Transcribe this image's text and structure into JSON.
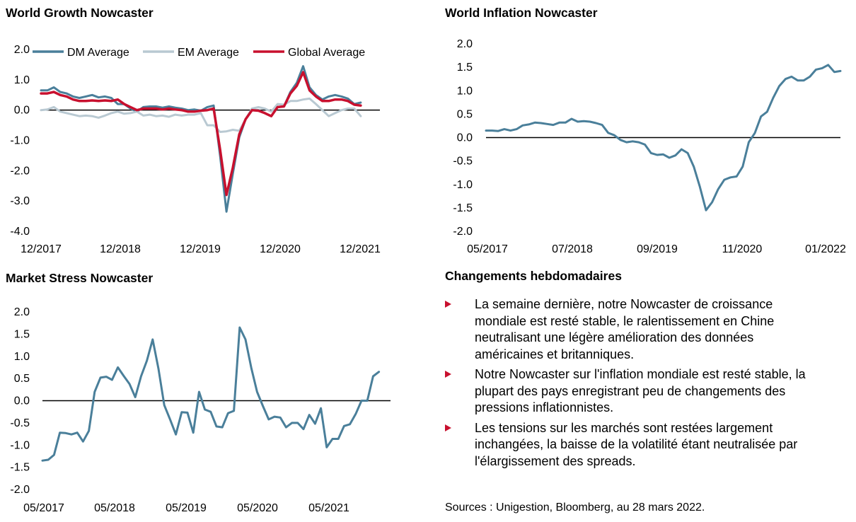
{
  "growth": {
    "title": "World Growth Nowcaster",
    "chart_data": {
      "type": "line",
      "ylim": [
        -4.0,
        2.0
      ],
      "yticks": [
        "2.0",
        "1.0",
        "0.0",
        "-1.0",
        "-2.0",
        "-3.0",
        "-4.0"
      ],
      "xticks": [
        "12/2017",
        "12/2018",
        "12/2019",
        "12/2020",
        "12/2021"
      ],
      "xlim": [
        0,
        53
      ],
      "legend_position": "top",
      "series": [
        {
          "name": "DM Average",
          "color": "#4a7f9a",
          "width": 3,
          "values": [
            0.65,
            0.65,
            0.75,
            0.6,
            0.55,
            0.45,
            0.4,
            0.45,
            0.5,
            0.42,
            0.45,
            0.4,
            0.2,
            0.2,
            0.05,
            -0.05,
            0.1,
            0.12,
            0.12,
            0.08,
            0.12,
            0.08,
            0.05,
            0.0,
            0.02,
            -0.02,
            0.1,
            0.15,
            -1.5,
            -3.35,
            -2.1,
            -0.9,
            -0.3,
            0.0,
            0.0,
            -0.1,
            -0.2,
            0.1,
            0.12,
            0.6,
            0.9,
            1.45,
            0.75,
            0.5,
            0.35,
            0.45,
            0.5,
            0.45,
            0.38,
            0.2,
            0.25
          ]
        },
        {
          "name": "EM Average",
          "color": "#b9c9d2",
          "width": 3,
          "values": [
            0.0,
            0.02,
            0.1,
            -0.05,
            -0.1,
            -0.15,
            -0.2,
            -0.18,
            -0.2,
            -0.25,
            -0.18,
            -0.1,
            -0.05,
            -0.12,
            -0.1,
            -0.05,
            -0.18,
            -0.15,
            -0.2,
            -0.18,
            -0.22,
            -0.15,
            -0.18,
            -0.15,
            -0.15,
            -0.1,
            -0.5,
            -0.5,
            -0.72,
            -0.7,
            -0.65,
            -0.68,
            -0.3,
            0.05,
            0.1,
            0.05,
            -0.05,
            0.2,
            0.18,
            0.3,
            0.3,
            0.35,
            0.38,
            0.2,
            0.0,
            -0.2,
            -0.1,
            0.0,
            0.05,
            0.05,
            -0.2
          ]
        },
        {
          "name": "Global Average",
          "color": "#c8102e",
          "width": 3.5,
          "values": [
            0.55,
            0.55,
            0.6,
            0.5,
            0.45,
            0.35,
            0.3,
            0.3,
            0.32,
            0.3,
            0.32,
            0.3,
            0.35,
            0.2,
            0.1,
            0.0,
            0.05,
            0.05,
            0.05,
            0.02,
            0.05,
            0.02,
            0.0,
            -0.05,
            -0.05,
            -0.02,
            0.0,
            0.05,
            -1.3,
            -2.8,
            -1.9,
            -0.8,
            -0.3,
            0.0,
            -0.02,
            -0.1,
            -0.2,
            0.1,
            0.12,
            0.55,
            0.8,
            1.25,
            0.65,
            0.45,
            0.3,
            0.3,
            0.35,
            0.35,
            0.3,
            0.18,
            0.15
          ]
        }
      ]
    }
  },
  "inflation": {
    "title": "World Inflation Nowcaster",
    "chart_data": {
      "type": "line",
      "ylim": [
        -2.0,
        2.0
      ],
      "yticks": [
        "2.0",
        "1.5",
        "1.0",
        "0.5",
        "0.0",
        "-0.5",
        "-1.0",
        "-1.5",
        "-2.0"
      ],
      "xticks": [
        "05/2017",
        "07/2018",
        "09/2019",
        "11/2020",
        "01/2022"
      ],
      "xlim": [
        0,
        58
      ],
      "series": [
        {
          "name": "",
          "color": "#4a7f9a",
          "width": 3,
          "values": [
            0.15,
            0.15,
            0.14,
            0.18,
            0.15,
            0.18,
            0.26,
            0.28,
            0.32,
            0.31,
            0.29,
            0.27,
            0.32,
            0.32,
            0.4,
            0.34,
            0.35,
            0.34,
            0.31,
            0.27,
            0.1,
            0.05,
            -0.05,
            -0.1,
            -0.08,
            -0.1,
            -0.15,
            -0.33,
            -0.37,
            -0.36,
            -0.43,
            -0.38,
            -0.25,
            -0.33,
            -0.62,
            -1.05,
            -1.55,
            -1.38,
            -1.1,
            -0.9,
            -0.85,
            -0.83,
            -0.62,
            -0.1,
            0.1,
            0.45,
            0.55,
            0.85,
            1.1,
            1.25,
            1.3,
            1.22,
            1.22,
            1.3,
            1.45,
            1.48,
            1.55,
            1.4,
            1.42
          ]
        }
      ]
    }
  },
  "stress": {
    "title": "Market Stress Nowcaster",
    "chart_data": {
      "type": "line",
      "ylim": [
        -2.0,
        2.0
      ],
      "yticks": [
        "2.0",
        "1.5",
        "1.0",
        "0.5",
        "0.0",
        "-0.5",
        "-1.0",
        "-1.5",
        "-2.0"
      ],
      "xticks": [
        "05/2017",
        "05/2018",
        "05/2019",
        "05/2020",
        "05/2021"
      ],
      "xlim": [
        0,
        60
      ],
      "series": [
        {
          "name": "",
          "color": "#4a7f9a",
          "width": 3,
          "values": [
            -1.35,
            -1.33,
            -1.22,
            -0.72,
            -0.73,
            -0.76,
            -0.72,
            -0.92,
            -0.68,
            0.2,
            0.52,
            0.54,
            0.47,
            0.75,
            0.56,
            0.38,
            0.08,
            0.55,
            0.9,
            1.38,
            0.72,
            -0.1,
            -0.42,
            -0.76,
            -0.26,
            -0.27,
            -0.72,
            0.2,
            -0.2,
            -0.25,
            -0.58,
            -0.6,
            -0.28,
            -0.23,
            1.65,
            1.38,
            0.74,
            0.2,
            -0.12,
            -0.42,
            -0.36,
            -0.38,
            -0.6,
            -0.5,
            -0.5,
            -0.64,
            -0.32,
            -0.52,
            -0.17,
            -1.05,
            -0.86,
            -0.86,
            -0.57,
            -0.53,
            -0.3,
            0.0,
            0.0,
            0.55,
            0.65
          ]
        }
      ]
    }
  },
  "changes": {
    "title": "Changements hebdomadaires",
    "bullets": [
      {
        "line1": "La semaine dernière, notre Nowcaster de croissance",
        "line2": "mondiale est resté stable, le ralentissement en Chine",
        "line3": "neutralisant une légère amélioration des données",
        "line4": "américaines et britanniques."
      },
      {
        "line1": "Notre Nowcaster sur l'inflation mondiale est resté stable, la",
        "line2": "plupart des pays enregistrant peu de changements des",
        "line3": "pressions inflationnistes.",
        "line4": ""
      },
      {
        "line1": "Les tensions sur les marchés sont restées largement",
        "line2": "inchangées, la baisse de la volatilité étant neutralisée par",
        "line3": "l'élargissement des spreads.",
        "line4": ""
      }
    ],
    "bullet_color": "#c8102e"
  },
  "sources": "Sources : Unigestion, Bloomberg, au 28 mars 2022."
}
